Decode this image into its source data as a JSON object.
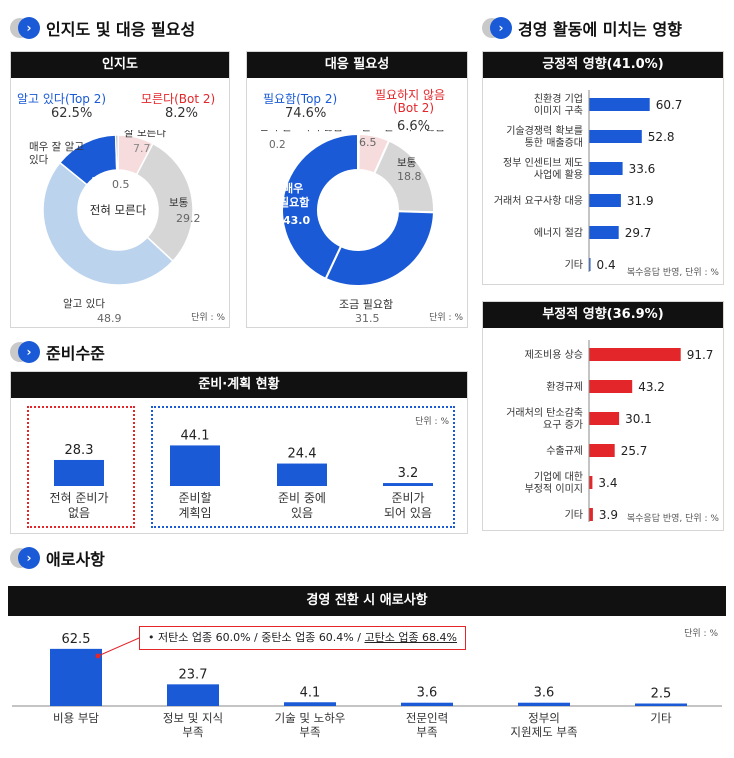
{
  "sections": {
    "awareness_title": "인지도 및 대응 필요성",
    "impact_title": "경영 활동에 미치는 영향",
    "readiness_title": "준비수준",
    "difficulty_title": "애로사항"
  },
  "awareness": {
    "header": "인지도",
    "top_label": "알고 있다(Top 2)",
    "top_value": "62.5%",
    "bot_label": "모른다(Bot 2)",
    "bot_value": "8.2%",
    "center": "전혀 모른다",
    "unit": "단위 : %",
    "slice_labels": [
      {
        "name": "매우 잘 알고 있다",
        "lines": [
          "매우 잘 알고",
          "있다"
        ],
        "value": "13.6"
      },
      {
        "name": "잘 모른다",
        "lines": [
          "잘 모른다"
        ],
        "value": "7.7"
      },
      {
        "name": "보통",
        "lines": [
          "보통"
        ],
        "value": "29.2"
      },
      {
        "name": "알고 있다",
        "lines": [
          "알고 있다"
        ],
        "value": "48.9"
      },
      {
        "name": "전혀 모른다",
        "lines": [],
        "value": "0.5"
      }
    ]
  },
  "necessity": {
    "header": "대응 필요성",
    "top_label": "필요함(Top 2)",
    "top_value": "74.6%",
    "bot_label_1": "필요하지 않음",
    "bot_label_2": "(Bot 2)",
    "bot_value": "6.6%",
    "unit": "단위 : %",
    "labels": {
      "none_text": "전혀 필요하지 않음",
      "none_value": "0.2",
      "little_text": "별로 필요하지 않음",
      "little_value": "6.5",
      "normal_text": "보통",
      "normal_value": "18.8",
      "some_text": "조금 필요함",
      "some_value": "31.5",
      "very_text_1": "매우",
      "very_text_2": "필요함",
      "very_value": "43.0"
    }
  },
  "positive": {
    "header": "긍정적 영향(41.0%)",
    "note": "복수응답 반영, 단위 : %"
  },
  "negative": {
    "header": "부정적 영향(36.9%)",
    "note": "복수응답 반영, 단위 : %"
  },
  "readiness": {
    "header": "준비·계획 현황",
    "unit": "단위 : %"
  },
  "difficulty": {
    "header": "경영 전환 시 애로사항",
    "unit": "단위 : %",
    "callout_prefix": "• 저탄소 업종 60.0% / 중탄소 업종 60.4% / ",
    "callout_highlight": "고탄소 업종 68.4%"
  },
  "colors": {
    "blue": "#1a5ad6",
    "red": "#e3262a",
    "light_blue": "#bcd3ee",
    "gray": "#d6d6d6",
    "pink": "#f6dcdc",
    "header": "#111111"
  },
  "chart_data": [
    {
      "id": "awareness",
      "type": "pie",
      "title": "인지도",
      "categories": [
        "매우 잘 알고 있다",
        "알고 있다",
        "보통",
        "잘 모른다",
        "전혀 모른다"
      ],
      "values": [
        13.6,
        48.9,
        29.2,
        7.7,
        0.5
      ]
    },
    {
      "id": "necessity",
      "type": "pie",
      "title": "대응 필요성",
      "categories": [
        "매우 필요함",
        "조금 필요함",
        "보통",
        "별로 필요하지 않음",
        "전혀 필요하지 않음"
      ],
      "values": [
        43.0,
        31.5,
        18.8,
        6.5,
        0.2
      ]
    },
    {
      "id": "positive",
      "type": "bar",
      "title": "긍정적 영향(41.0%)",
      "categories": [
        [
          "친환경 기업",
          "이미지 구축"
        ],
        [
          "기술경쟁력 확보를",
          "통한 매출증대"
        ],
        [
          "정부 인센티브 제도",
          "사업에 활용"
        ],
        [
          "거래처 요구사항 대응"
        ],
        [
          "에너지 절감"
        ],
        [
          "기타"
        ]
      ],
      "values": [
        60.7,
        52.8,
        33.6,
        31.9,
        29.7,
        0.4
      ],
      "xlim": [
        0,
        100
      ]
    },
    {
      "id": "negative",
      "type": "bar",
      "title": "부정적 영향(36.9%)",
      "categories": [
        [
          "제조비용 상승"
        ],
        [
          "환경규제"
        ],
        [
          "거래처의 탄소감축",
          "요구 증가"
        ],
        [
          "수출규제"
        ],
        [
          "기업에 대한",
          "부정적 이미지"
        ],
        [
          "기타"
        ]
      ],
      "values": [
        91.7,
        43.2,
        30.1,
        25.7,
        3.4,
        3.9
      ],
      "xlim": [
        0,
        100
      ]
    },
    {
      "id": "readiness",
      "type": "bar",
      "title": "준비·계획 현황",
      "categories": [
        [
          "전혀 준비가",
          "없음"
        ],
        [
          "준비할",
          "계획임"
        ],
        [
          "준비 중에",
          "있음"
        ],
        [
          "준비가",
          "되어 있음"
        ]
      ],
      "values": [
        28.3,
        44.1,
        24.4,
        3.2
      ],
      "ylim": [
        0,
        50
      ]
    },
    {
      "id": "difficulty",
      "type": "bar",
      "title": "경영 전환 시 애로사항",
      "categories": [
        [
          "비용 부담"
        ],
        [
          "정보 및 지식",
          "부족"
        ],
        [
          "기술 및 노하우",
          "부족"
        ],
        [
          "전문인력",
          "부족"
        ],
        [
          "정부의",
          "지원제도 부족"
        ],
        [
          "기타"
        ]
      ],
      "values": [
        62.5,
        23.7,
        4.1,
        3.6,
        3.6,
        2.5
      ],
      "ylim": [
        0,
        70
      ]
    }
  ]
}
